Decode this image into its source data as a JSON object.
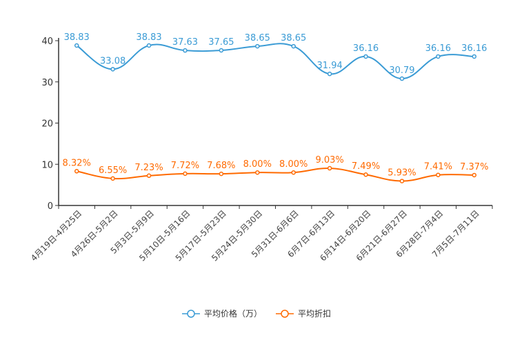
{
  "chart_data": {
    "type": "line",
    "categories": [
      "4月19日-4月25日",
      "4月26日-5月2日",
      "5月3日-5月9日",
      "5月10日-5月16日",
      "5月17日-5月23日",
      "5月24日-5月30日",
      "5月31日-6月6日",
      "6月7日-6月13日",
      "6月14日-6月20日",
      "6月21日-6月27日",
      "6月28日-7月4日",
      "7月5日-7月11日"
    ],
    "series": [
      {
        "name": "平均价格（万）",
        "color": "#3a9bd5",
        "values": [
          38.83,
          33.08,
          38.83,
          37.63,
          37.65,
          38.65,
          38.65,
          31.94,
          36.16,
          30.79,
          36.16,
          36.16
        ],
        "labels": [
          "38.83",
          "33.08",
          "38.83",
          "37.63",
          "37.65",
          "38.65",
          "38.65",
          "31.94",
          "36.16",
          "30.79",
          "36.16",
          "36.16"
        ]
      },
      {
        "name": "平均折扣",
        "color": "#ff6a00",
        "values": [
          8.32,
          6.55,
          7.23,
          7.72,
          7.68,
          8.0,
          8.0,
          9.03,
          7.49,
          5.93,
          7.41,
          7.37
        ],
        "labels": [
          "8.32%",
          "6.55%",
          "7.23%",
          "7.72%",
          "7.68%",
          "8.00%",
          "8.00%",
          "9.03%",
          "7.49%",
          "5.93%",
          "7.41%",
          "7.37%"
        ]
      }
    ],
    "yticks": [
      0,
      10,
      20,
      30,
      40
    ],
    "ylim": [
      0,
      40
    ],
    "grid": false,
    "legend": "bottom"
  }
}
